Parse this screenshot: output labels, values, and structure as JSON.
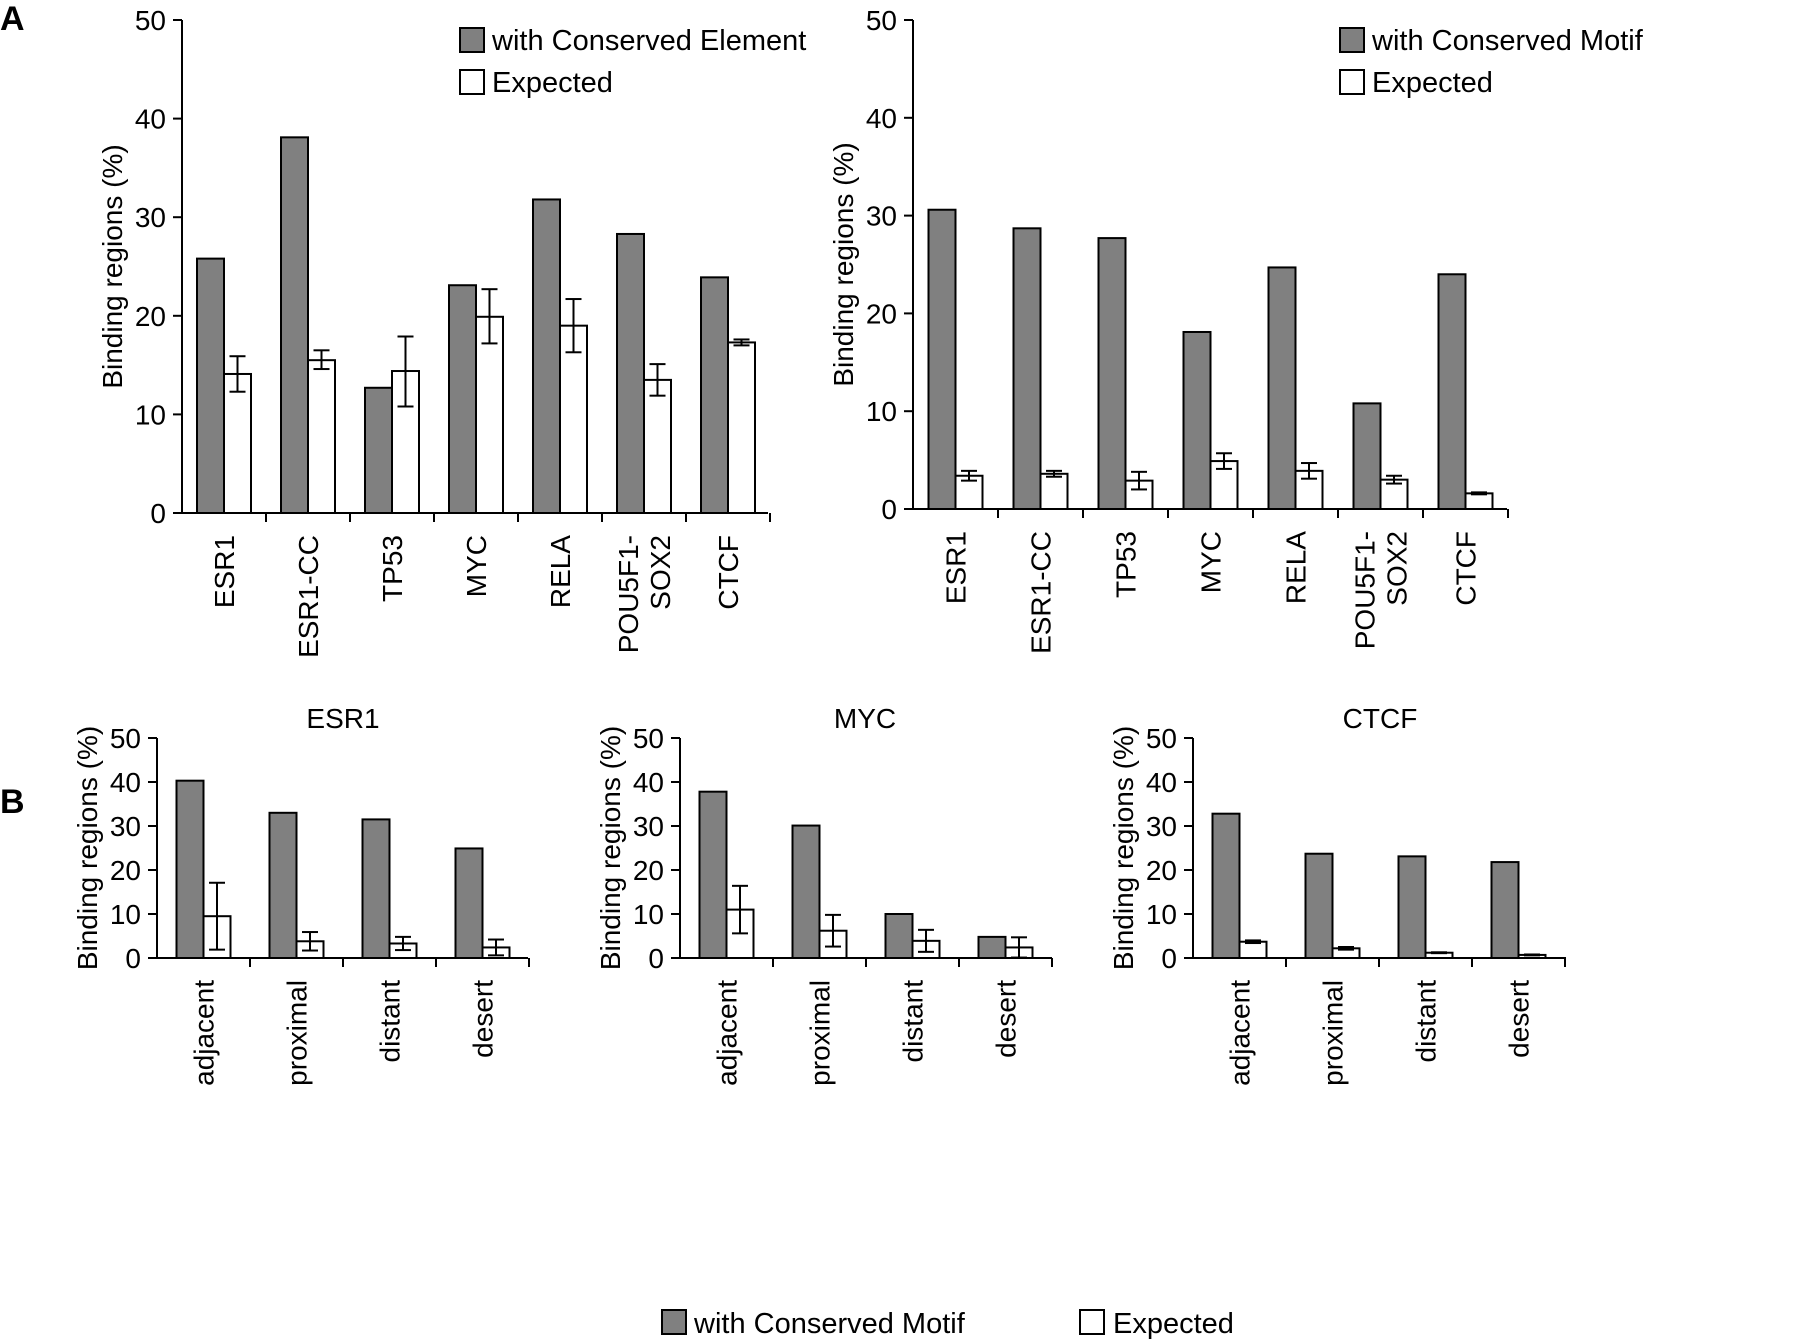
{
  "figure": {
    "panel_a_label": "A",
    "panel_b_label": "B",
    "bottom_legend": [
      {
        "label": "with Conserved Motif",
        "color": "#808080"
      },
      {
        "label": "Expected",
        "color": "#ffffff"
      }
    ]
  },
  "chart_data": [
    {
      "type": "bar",
      "panel": "A",
      "title": "",
      "ylabel": "Binding regions (%)",
      "ylim": [
        0,
        50
      ],
      "yticks": [
        0,
        10,
        20,
        30,
        40,
        50
      ],
      "categories": [
        [
          "ESR1"
        ],
        [
          "ESR1-CC"
        ],
        [
          "TP53"
        ],
        [
          "MYC"
        ],
        [
          "RELA"
        ],
        [
          "POU5F1-",
          "SOX2"
        ],
        [
          "CTCF"
        ]
      ],
      "legend": "top-right",
      "series": [
        {
          "name": "with Conserved Element",
          "color": "#808080",
          "values": [
            25.8,
            38.1,
            12.7,
            23.1,
            31.8,
            28.3,
            23.9
          ]
        },
        {
          "name": "Expected",
          "color": "#ffffff",
          "values": [
            14.1,
            15.5,
            14.4,
            19.9,
            19.0,
            13.5,
            17.3
          ],
          "err_low": [
            12.3,
            14.6,
            10.8,
            17.2,
            16.3,
            11.9,
            17.0
          ],
          "err_high": [
            15.9,
            16.5,
            17.9,
            22.7,
            21.7,
            15.1,
            17.6
          ]
        }
      ]
    },
    {
      "type": "bar",
      "panel": "A",
      "title": "",
      "ylabel": "Binding regions (%)",
      "ylim": [
        0,
        50
      ],
      "yticks": [
        0,
        10,
        20,
        30,
        40,
        50
      ],
      "categories": [
        [
          "ESR1"
        ],
        [
          "ESR1-CC"
        ],
        [
          "TP53"
        ],
        [
          "MYC"
        ],
        [
          "RELA"
        ],
        [
          "POU5F1-",
          "SOX2"
        ],
        [
          "CTCF"
        ]
      ],
      "legend": "top-right",
      "series": [
        {
          "name": "with Conserved Motif",
          "color": "#808080",
          "values": [
            30.6,
            28.7,
            27.7,
            18.1,
            24.7,
            10.8,
            24.0
          ]
        },
        {
          "name": "Expected",
          "color": "#ffffff",
          "values": [
            3.4,
            3.6,
            2.9,
            4.9,
            3.9,
            3.0,
            1.6
          ],
          "err_low": [
            2.9,
            3.3,
            2.0,
            4.1,
            3.1,
            2.6,
            1.5
          ],
          "err_high": [
            3.9,
            3.9,
            3.8,
            5.7,
            4.7,
            3.4,
            1.7
          ]
        }
      ]
    },
    {
      "type": "bar",
      "panel": "B",
      "title": "ESR1",
      "ylabel": "Binding regions (%)",
      "ylim": [
        0,
        50
      ],
      "yticks": [
        0,
        10,
        20,
        30,
        40,
        50
      ],
      "categories": [
        [
          "adjacent"
        ],
        [
          "proximal"
        ],
        [
          "distant"
        ],
        [
          "desert"
        ]
      ],
      "series": [
        {
          "name": "with Conserved Motif",
          "color": "#808080",
          "values": [
            40.3,
            33.0,
            31.5,
            24.9
          ]
        },
        {
          "name": "Expected",
          "color": "#ffffff",
          "values": [
            9.5,
            3.8,
            3.3,
            2.4
          ],
          "err_low": [
            1.9,
            1.7,
            1.8,
            0.6
          ],
          "err_high": [
            17.1,
            5.9,
            4.8,
            4.2
          ]
        }
      ]
    },
    {
      "type": "bar",
      "panel": "B",
      "title": "MYC",
      "ylabel": "Binding regions (%)",
      "ylim": [
        0,
        50
      ],
      "yticks": [
        0,
        10,
        20,
        30,
        40,
        50
      ],
      "categories": [
        [
          "adjacent"
        ],
        [
          "proximal"
        ],
        [
          "distant"
        ],
        [
          "desert"
        ]
      ],
      "series": [
        {
          "name": "with Conserved Motif",
          "color": "#808080",
          "values": [
            37.8,
            30.1,
            10.0,
            4.8
          ]
        },
        {
          "name": "Expected",
          "color": "#ffffff",
          "values": [
            11.0,
            6.2,
            3.9,
            2.4
          ],
          "err_low": [
            5.6,
            2.6,
            1.4,
            0.1
          ],
          "err_high": [
            16.4,
            9.8,
            6.4,
            4.7
          ]
        }
      ]
    },
    {
      "type": "bar",
      "panel": "B",
      "title": "CTCF",
      "ylabel": "Binding regions (%)",
      "ylim": [
        0,
        50
      ],
      "yticks": [
        0,
        10,
        20,
        30,
        40,
        50
      ],
      "categories": [
        [
          "adjacent"
        ],
        [
          "proximal"
        ],
        [
          "distant"
        ],
        [
          "desert"
        ]
      ],
      "series": [
        {
          "name": "with Conserved Motif",
          "color": "#808080",
          "values": [
            32.8,
            23.7,
            23.1,
            21.8
          ]
        },
        {
          "name": "Expected",
          "color": "#ffffff",
          "values": [
            3.7,
            2.2,
            1.2,
            0.7
          ],
          "err_low": [
            3.4,
            1.9,
            1.1,
            0.6
          ],
          "err_high": [
            4.0,
            2.5,
            1.3,
            0.8
          ]
        }
      ]
    }
  ]
}
